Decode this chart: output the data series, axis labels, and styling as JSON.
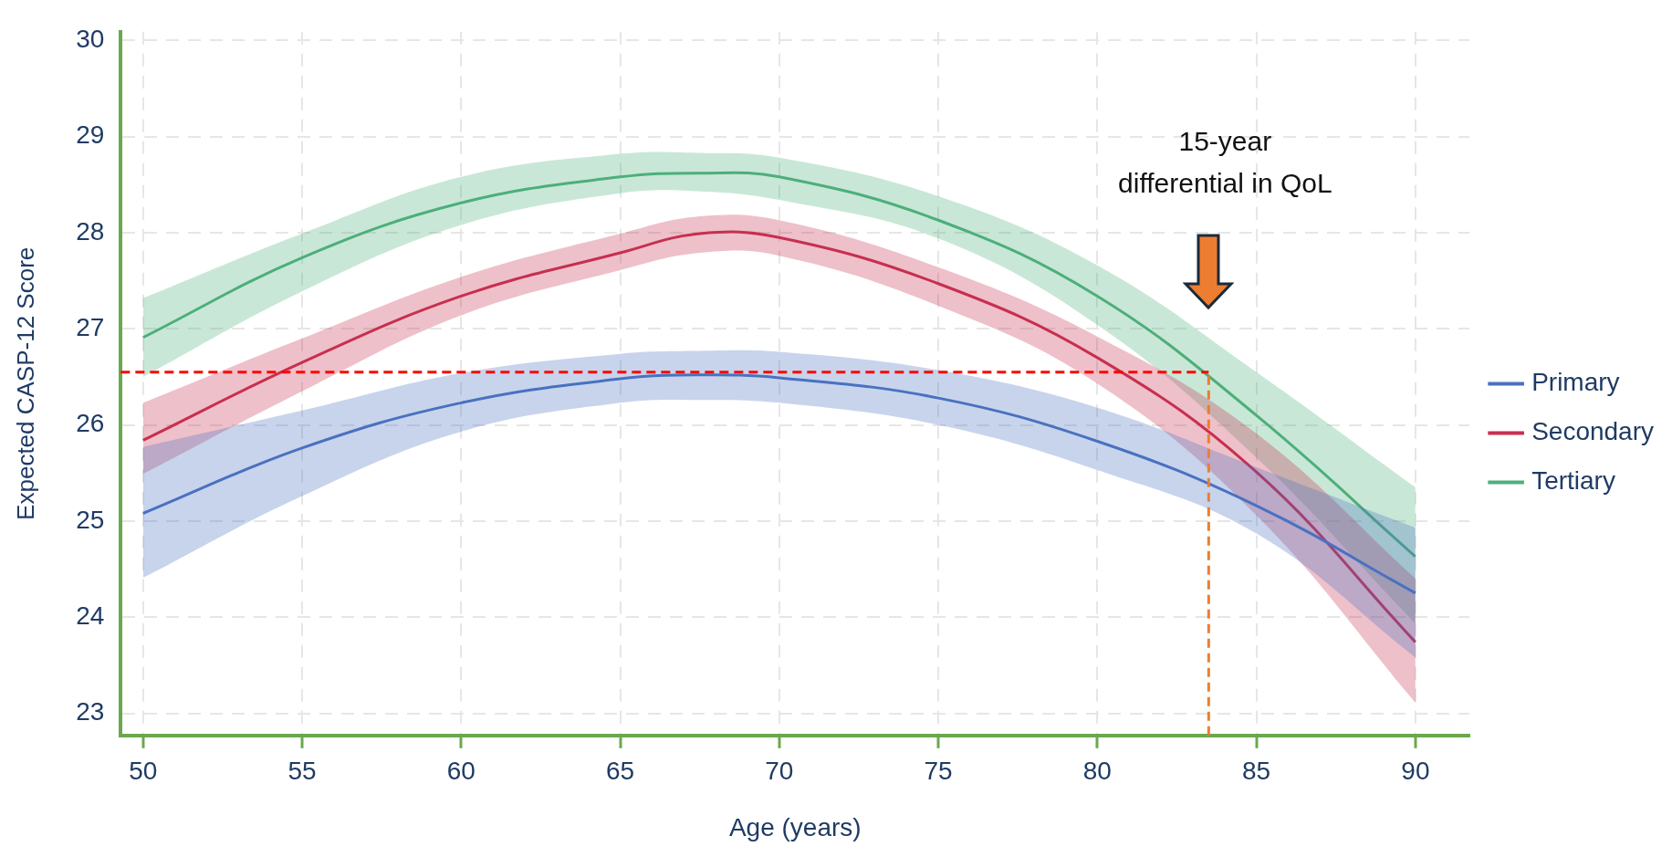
{
  "chart_data": {
    "type": "line",
    "xlabel": "Age (years)",
    "ylabel": "Expected CASP-12 Score",
    "x": [
      50,
      55,
      60,
      65,
      67.5,
      70,
      75,
      80,
      85,
      90
    ],
    "series": [
      {
        "name": "Primary",
        "color": "#4a72c0",
        "values": [
          25.08,
          25.76,
          26.23,
          26.48,
          26.52,
          26.49,
          26.28,
          25.83,
          25.16,
          24.25
        ],
        "lower": [
          24.41,
          25.26,
          25.93,
          26.23,
          26.26,
          26.23,
          26.0,
          25.53,
          24.87,
          23.58
        ],
        "upper": [
          25.77,
          26.15,
          26.54,
          26.74,
          26.77,
          26.76,
          26.57,
          26.18,
          25.56,
          24.93
        ]
      },
      {
        "name": "Secondary",
        "color": "#c8304f",
        "values": [
          25.84,
          26.65,
          27.34,
          27.79,
          27.99,
          27.95,
          27.47,
          26.7,
          25.51,
          23.74
        ],
        "lower": [
          25.49,
          26.35,
          27.14,
          27.61,
          27.79,
          27.76,
          27.24,
          26.43,
          25.06,
          23.11
        ],
        "upper": [
          26.23,
          26.9,
          27.54,
          27.99,
          28.17,
          28.13,
          27.64,
          26.92,
          25.91,
          24.4
        ]
      },
      {
        "name": "Tertiary",
        "color": "#4daf7a",
        "values": [
          26.91,
          27.74,
          28.31,
          28.58,
          28.62,
          28.58,
          28.13,
          27.34,
          26.1,
          24.63
        ],
        "lower": [
          26.5,
          27.39,
          28.08,
          28.41,
          28.43,
          28.34,
          27.94,
          27.04,
          25.66,
          23.93
        ],
        "upper": [
          27.32,
          27.99,
          28.58,
          28.82,
          28.83,
          28.78,
          28.38,
          27.66,
          26.55,
          25.35
        ]
      }
    ],
    "xlim": [
      49.3,
      91.7
    ],
    "xticks": [
      50,
      55,
      60,
      65,
      70,
      75,
      80,
      85,
      90
    ],
    "ylim": [
      22.77,
      30.09
    ],
    "yticks": [
      23,
      24,
      25,
      26,
      27,
      28,
      29,
      30
    ],
    "ref_lines": [
      {
        "axis": "y",
        "value": 26.55,
        "color": "#ff0000",
        "line_style": "dashed"
      },
      {
        "axis": "x",
        "value": 83.5,
        "color": "#ed7d31",
        "line_style": "dashed"
      }
    ],
    "annotations": [
      "15-year\ndifferential in QoL"
    ],
    "grid": true,
    "legend": "right",
    "marker": "none",
    "line_style": "solid"
  }
}
